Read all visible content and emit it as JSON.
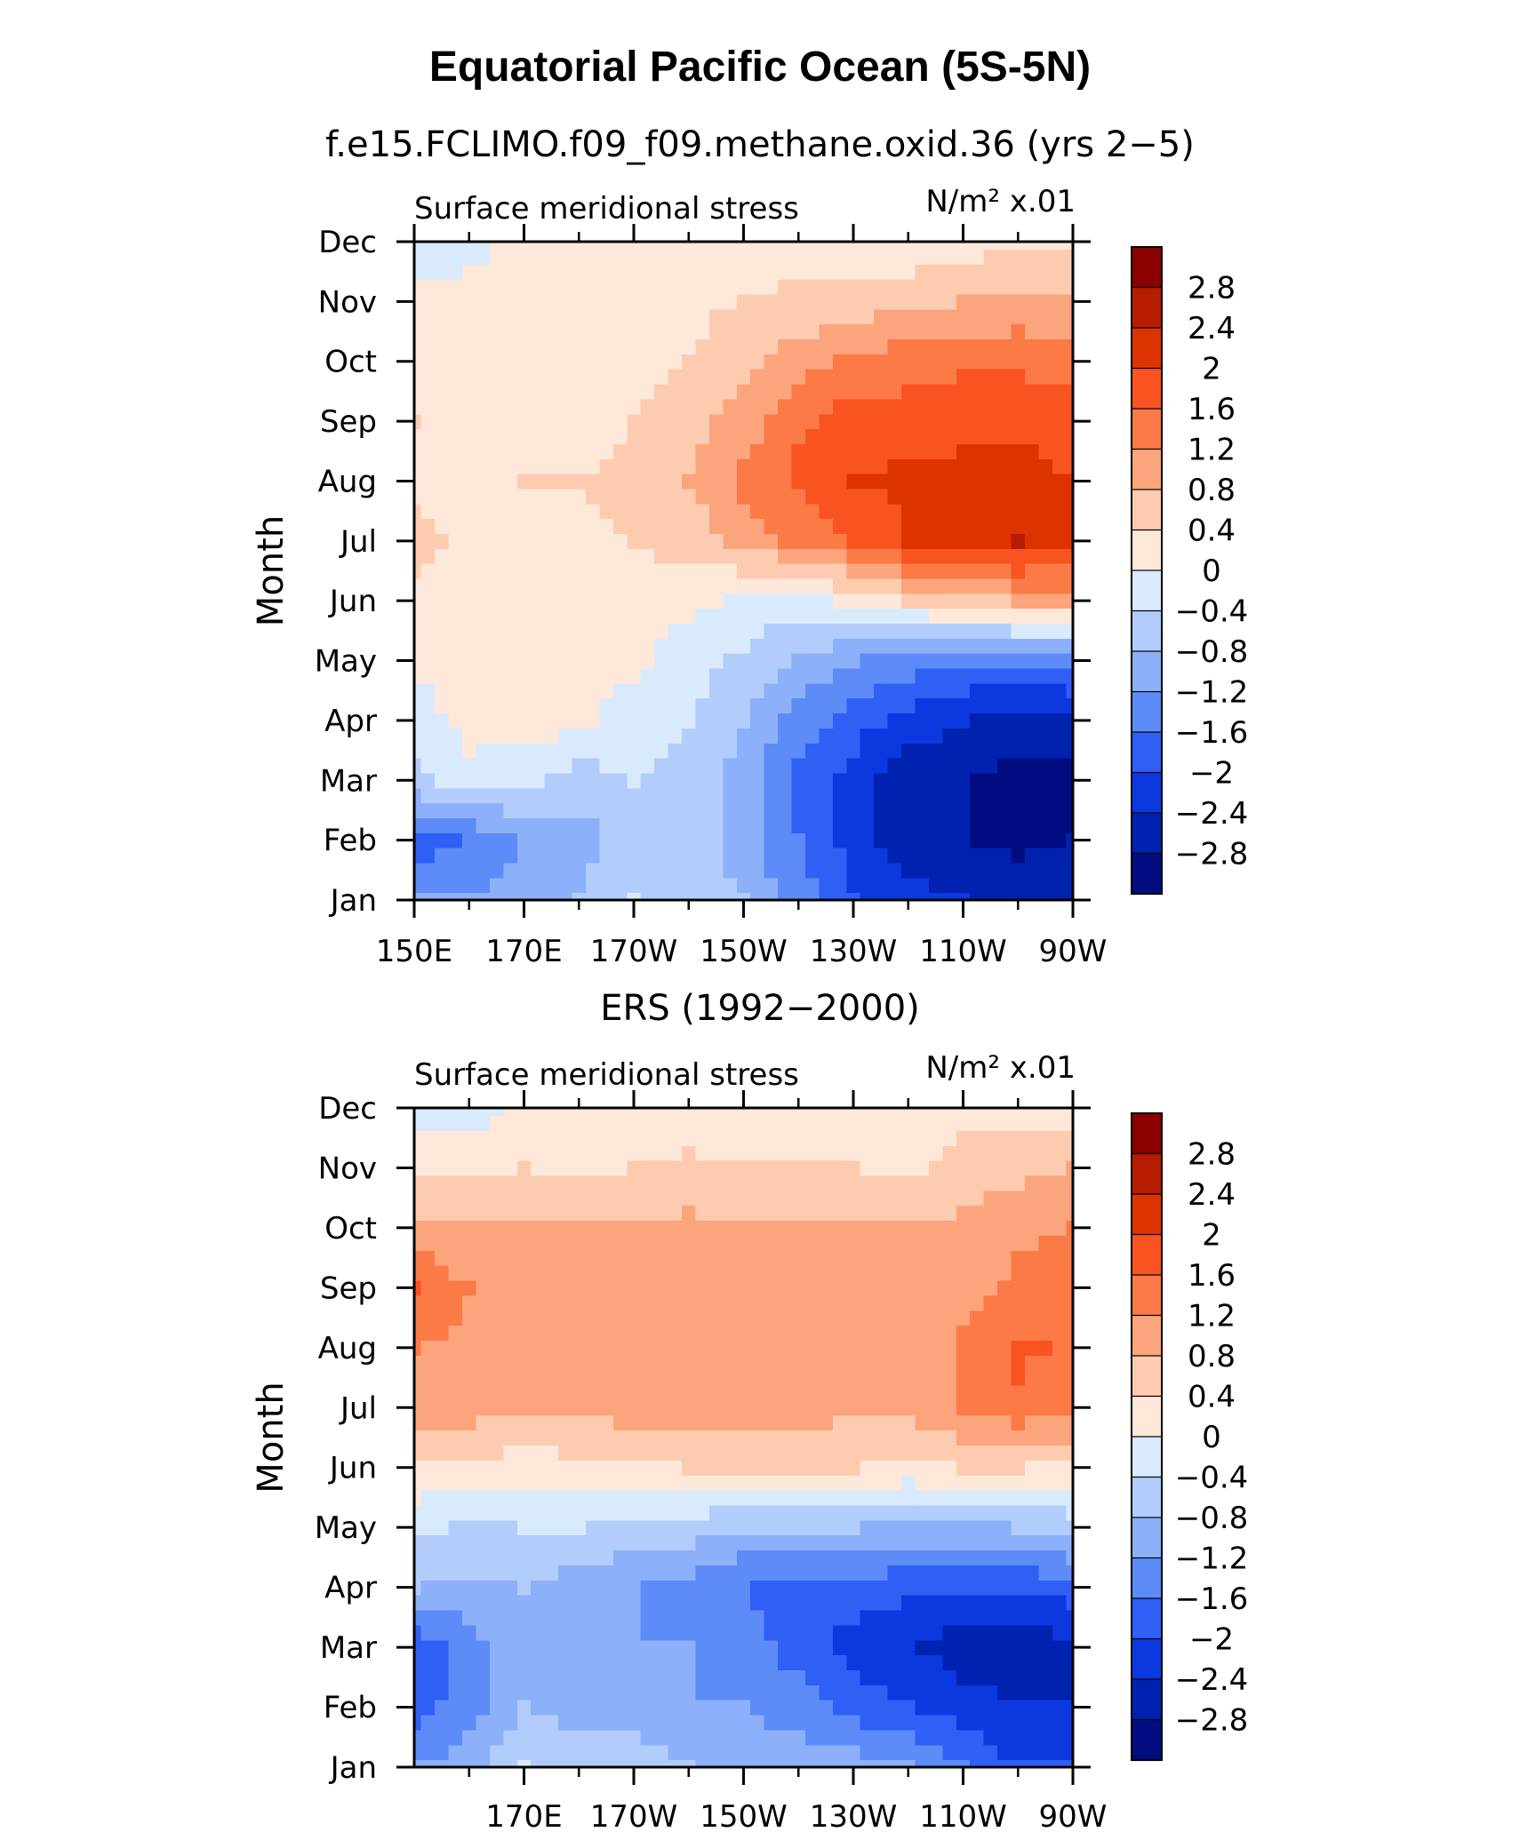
{
  "title": "Equatorial Pacific Ocean (5S-5N)",
  "panels": [
    {
      "title": "f.e15.FCLIMO.f09_f09.methane.oxid.36 (yrs 2−5)",
      "left_label": "Surface meridional stress",
      "units_label": "N/m² x.01",
      "ylabel": "Month",
      "xticks": [
        "150E",
        "170E",
        "170W",
        "150W",
        "130W",
        "110W",
        "90W"
      ]
    },
    {
      "title": "ERS (1992−2000)",
      "left_label": "Surface meridional stress",
      "units_label": "N/m² x.01",
      "ylabel": "Month",
      "xticks": [
        "170E",
        "170W",
        "150W",
        "130W",
        "110W",
        "90W"
      ]
    }
  ],
  "months": [
    "Jan",
    "Feb",
    "Mar",
    "Apr",
    "May",
    "Jun",
    "Jul",
    "Aug",
    "Sep",
    "Oct",
    "Nov",
    "Dec"
  ],
  "colorbar": {
    "labels": [
      "2.8",
      "2.4",
      "2",
      "1.6",
      "1.2",
      "0.8",
      "0.4",
      "0",
      "−0.4",
      "−0.8",
      "−1.2",
      "−1.6",
      "−2",
      "−2.4",
      "−2.8"
    ],
    "colors": [
      "#8b0000",
      "#b71c00",
      "#dc3300",
      "#fa5322",
      "#fb7a46",
      "#fca47c",
      "#fdcbaf",
      "#fee8da",
      "#d9eafc",
      "#b2cdfb",
      "#8cb0fa",
      "#5d8bf7",
      "#2f5ff5",
      "#0c38e0",
      "#0022b0",
      "#000c80"
    ]
  },
  "chart_data": [
    {
      "type": "heatmap",
      "title": "f.e15.FCLIMO.f09_f09.methane.oxid.36 (yrs 2−5)",
      "xlabel": "",
      "ylabel": "Month",
      "variable": "Surface meridional stress",
      "units": "N/m² x.01",
      "x_lon": [
        150,
        160,
        170,
        180,
        190,
        200,
        210,
        220,
        230,
        240,
        250,
        260,
        270
      ],
      "xlim": [
        150,
        270
      ],
      "y": [
        "Jan",
        "Feb",
        "Mar",
        "Apr",
        "May",
        "Jun",
        "Jul",
        "Aug",
        "Sep",
        "Oct",
        "Nov",
        "Dec"
      ],
      "levels": [
        -2.8,
        -2.4,
        -2.0,
        -1.6,
        -1.2,
        -0.8,
        -0.4,
        0,
        0.4,
        0.8,
        1.2,
        1.6,
        2.0,
        2.4,
        2.8
      ],
      "z": [
        [
          -1.2,
          -1.2,
          -1.0,
          -0.8,
          -0.4,
          -0.6,
          -0.8,
          -1.4,
          -2.0,
          -2.2,
          -2.4,
          -2.6,
          -2.5
        ],
        [
          -1.8,
          -1.6,
          -1.2,
          -1.0,
          -0.6,
          -0.6,
          -1.0,
          -1.6,
          -2.2,
          -2.6,
          -2.8,
          -2.9,
          -2.8
        ],
        [
          -0.5,
          -0.2,
          -0.3,
          -0.6,
          -0.4,
          -0.6,
          -1.0,
          -1.8,
          -2.2,
          -2.6,
          -2.8,
          -3.0,
          -3.0
        ],
        [
          -0.3,
          0.2,
          0.2,
          0.1,
          -0.2,
          -0.4,
          -0.8,
          -1.4,
          -1.8,
          -2.2,
          -2.4,
          -2.5,
          -2.5
        ],
        [
          0.1,
          0.3,
          0.3,
          0.2,
          0.1,
          -0.2,
          -0.5,
          -0.9,
          -1.2,
          -1.4,
          -1.6,
          -1.6,
          -1.5
        ],
        [
          0.3,
          0.3,
          0.3,
          0.3,
          0.2,
          0.1,
          -0.1,
          -0.2,
          0.1,
          0.4,
          0.6,
          0.8,
          0.9
        ],
        [
          0.5,
          0.3,
          0.3,
          0.3,
          0.4,
          0.6,
          0.9,
          1.3,
          1.6,
          2.0,
          2.2,
          2.4,
          2.2
        ],
        [
          0.3,
          0.2,
          0.4,
          0.4,
          0.5,
          0.8,
          1.3,
          1.7,
          2.0,
          2.1,
          2.1,
          2.2,
          2.0
        ],
        [
          0.4,
          0.2,
          0.2,
          0.2,
          0.4,
          0.6,
          1.0,
          1.5,
          1.8,
          1.8,
          1.9,
          1.9,
          1.8
        ],
        [
          0.2,
          0.2,
          0.1,
          0.1,
          0.3,
          0.4,
          0.7,
          1.0,
          1.3,
          1.4,
          1.5,
          1.5,
          1.4
        ],
        [
          0.1,
          0.1,
          0.2,
          0.2,
          0.2,
          0.3,
          0.4,
          0.5,
          0.6,
          0.7,
          0.8,
          0.9,
          0.9
        ],
        [
          -0.2,
          -0.1,
          0.1,
          0.1,
          0.1,
          0.1,
          0.1,
          0.2,
          0.1,
          0.1,
          0.2,
          0.3,
          0.3
        ]
      ]
    },
    {
      "type": "heatmap",
      "title": "ERS (1992−2000)",
      "xlabel": "",
      "ylabel": "Month",
      "variable": "Surface meridional stress",
      "units": "N/m² x.01",
      "x_lon": [
        150,
        160,
        170,
        180,
        190,
        200,
        210,
        220,
        230,
        240,
        250,
        260,
        270
      ],
      "xlim": [
        150,
        270
      ],
      "y": [
        "Jan",
        "Feb",
        "Mar",
        "Apr",
        "May",
        "Jun",
        "Jul",
        "Aug",
        "Sep",
        "Oct",
        "Nov",
        "Dec"
      ],
      "levels": [
        -2.8,
        -2.4,
        -2.0,
        -1.6,
        -1.2,
        -0.8,
        -0.4,
        0,
        0.4,
        0.8,
        1.2,
        1.6,
        2.0,
        2.4,
        2.8
      ],
      "z": [
        [
          -1.2,
          -1.0,
          -0.4,
          -0.6,
          -0.6,
          -0.8,
          -1.0,
          -0.9,
          -1.0,
          -1.2,
          -1.6,
          -2.0,
          -2.0
        ],
        [
          -1.8,
          -1.4,
          -0.8,
          -1.0,
          -1.0,
          -1.2,
          -1.2,
          -1.4,
          -1.8,
          -2.0,
          -2.2,
          -2.4,
          -2.4
        ],
        [
          -2.0,
          -1.4,
          -1.0,
          -1.2,
          -1.2,
          -1.2,
          -1.4,
          -1.8,
          -2.2,
          -2.4,
          -2.6,
          -2.7,
          -2.5
        ],
        [
          -0.8,
          -0.9,
          -0.8,
          -1.0,
          -1.2,
          -1.4,
          -1.6,
          -1.8,
          -1.8,
          -1.9,
          -2.0,
          -2.0,
          -1.8
        ],
        [
          -0.3,
          -0.5,
          -0.4,
          -0.4,
          -0.6,
          -0.6,
          -0.8,
          -0.8,
          -0.8,
          -0.9,
          -0.9,
          -0.8,
          -0.6
        ],
        [
          0.3,
          0.3,
          0.2,
          0.3,
          0.3,
          0.4,
          0.5,
          0.4,
          0.4,
          0.3,
          0.4,
          0.4,
          0.3
        ],
        [
          1.1,
          1.0,
          0.8,
          0.9,
          1.0,
          1.0,
          1.0,
          1.0,
          0.9,
          0.9,
          1.2,
          1.5,
          1.3
        ],
        [
          1.2,
          1.1,
          1.0,
          1.0,
          1.0,
          1.1,
          1.1,
          1.0,
          1.0,
          0.8,
          1.3,
          1.7,
          1.5
        ],
        [
          1.7,
          1.2,
          0.9,
          1.0,
          1.0,
          1.0,
          1.0,
          1.0,
          0.9,
          0.8,
          1.0,
          1.3,
          1.4
        ],
        [
          0.9,
          0.8,
          0.8,
          0.8,
          0.8,
          0.9,
          0.8,
          0.8,
          0.8,
          0.8,
          0.9,
          1.1,
          1.2
        ],
        [
          0.3,
          0.3,
          0.4,
          0.3,
          0.4,
          0.5,
          0.4,
          0.4,
          0.4,
          0.3,
          0.6,
          0.7,
          0.8
        ],
        [
          -0.2,
          -0.2,
          0.1,
          0.2,
          0.1,
          0.1,
          0.1,
          0.1,
          0.1,
          0.1,
          0.2,
          0.2,
          0.2
        ]
      ]
    }
  ]
}
